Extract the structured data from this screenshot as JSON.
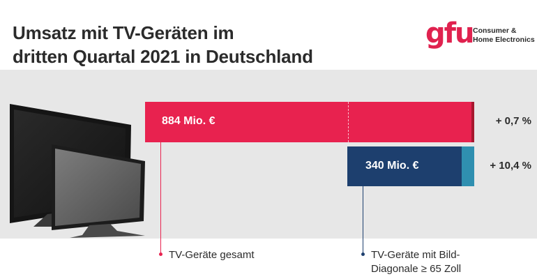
{
  "title_lines": [
    "Umsatz mit TV-Geräten im",
    "dritten Quartal 2021 in Deutschland"
  ],
  "logo": {
    "mark": "gfu",
    "line1": "Consumer &",
    "line2": "Home Electronics"
  },
  "colors": {
    "total": "#e8224f",
    "total_accent": "#a7182f",
    "large": "#1d3f6e",
    "large_accent": "#2f8fb0",
    "panel": "#e7e7e7"
  },
  "chart_data": {
    "type": "bar",
    "title": "Umsatz mit TV-Geräten im dritten Quartal 2021 in Deutschland",
    "unit": "Mio. €",
    "categories": [
      "TV-Geräte gesamt",
      "TV-Geräte mit Bild-Diagonale ≥ 65 Zoll"
    ],
    "values": [
      884,
      340
    ],
    "value_labels": [
      "884 Mio. €",
      "340 Mio. €"
    ],
    "changes": [
      "+ 0,7 %",
      "+ 10,4 %"
    ],
    "legend": {
      "total": "TV-Geräte gesamt",
      "large_line1": "TV-Geräte mit Bild-",
      "large_line2": "Diagonale ≥ 65 Zoll"
    }
  }
}
